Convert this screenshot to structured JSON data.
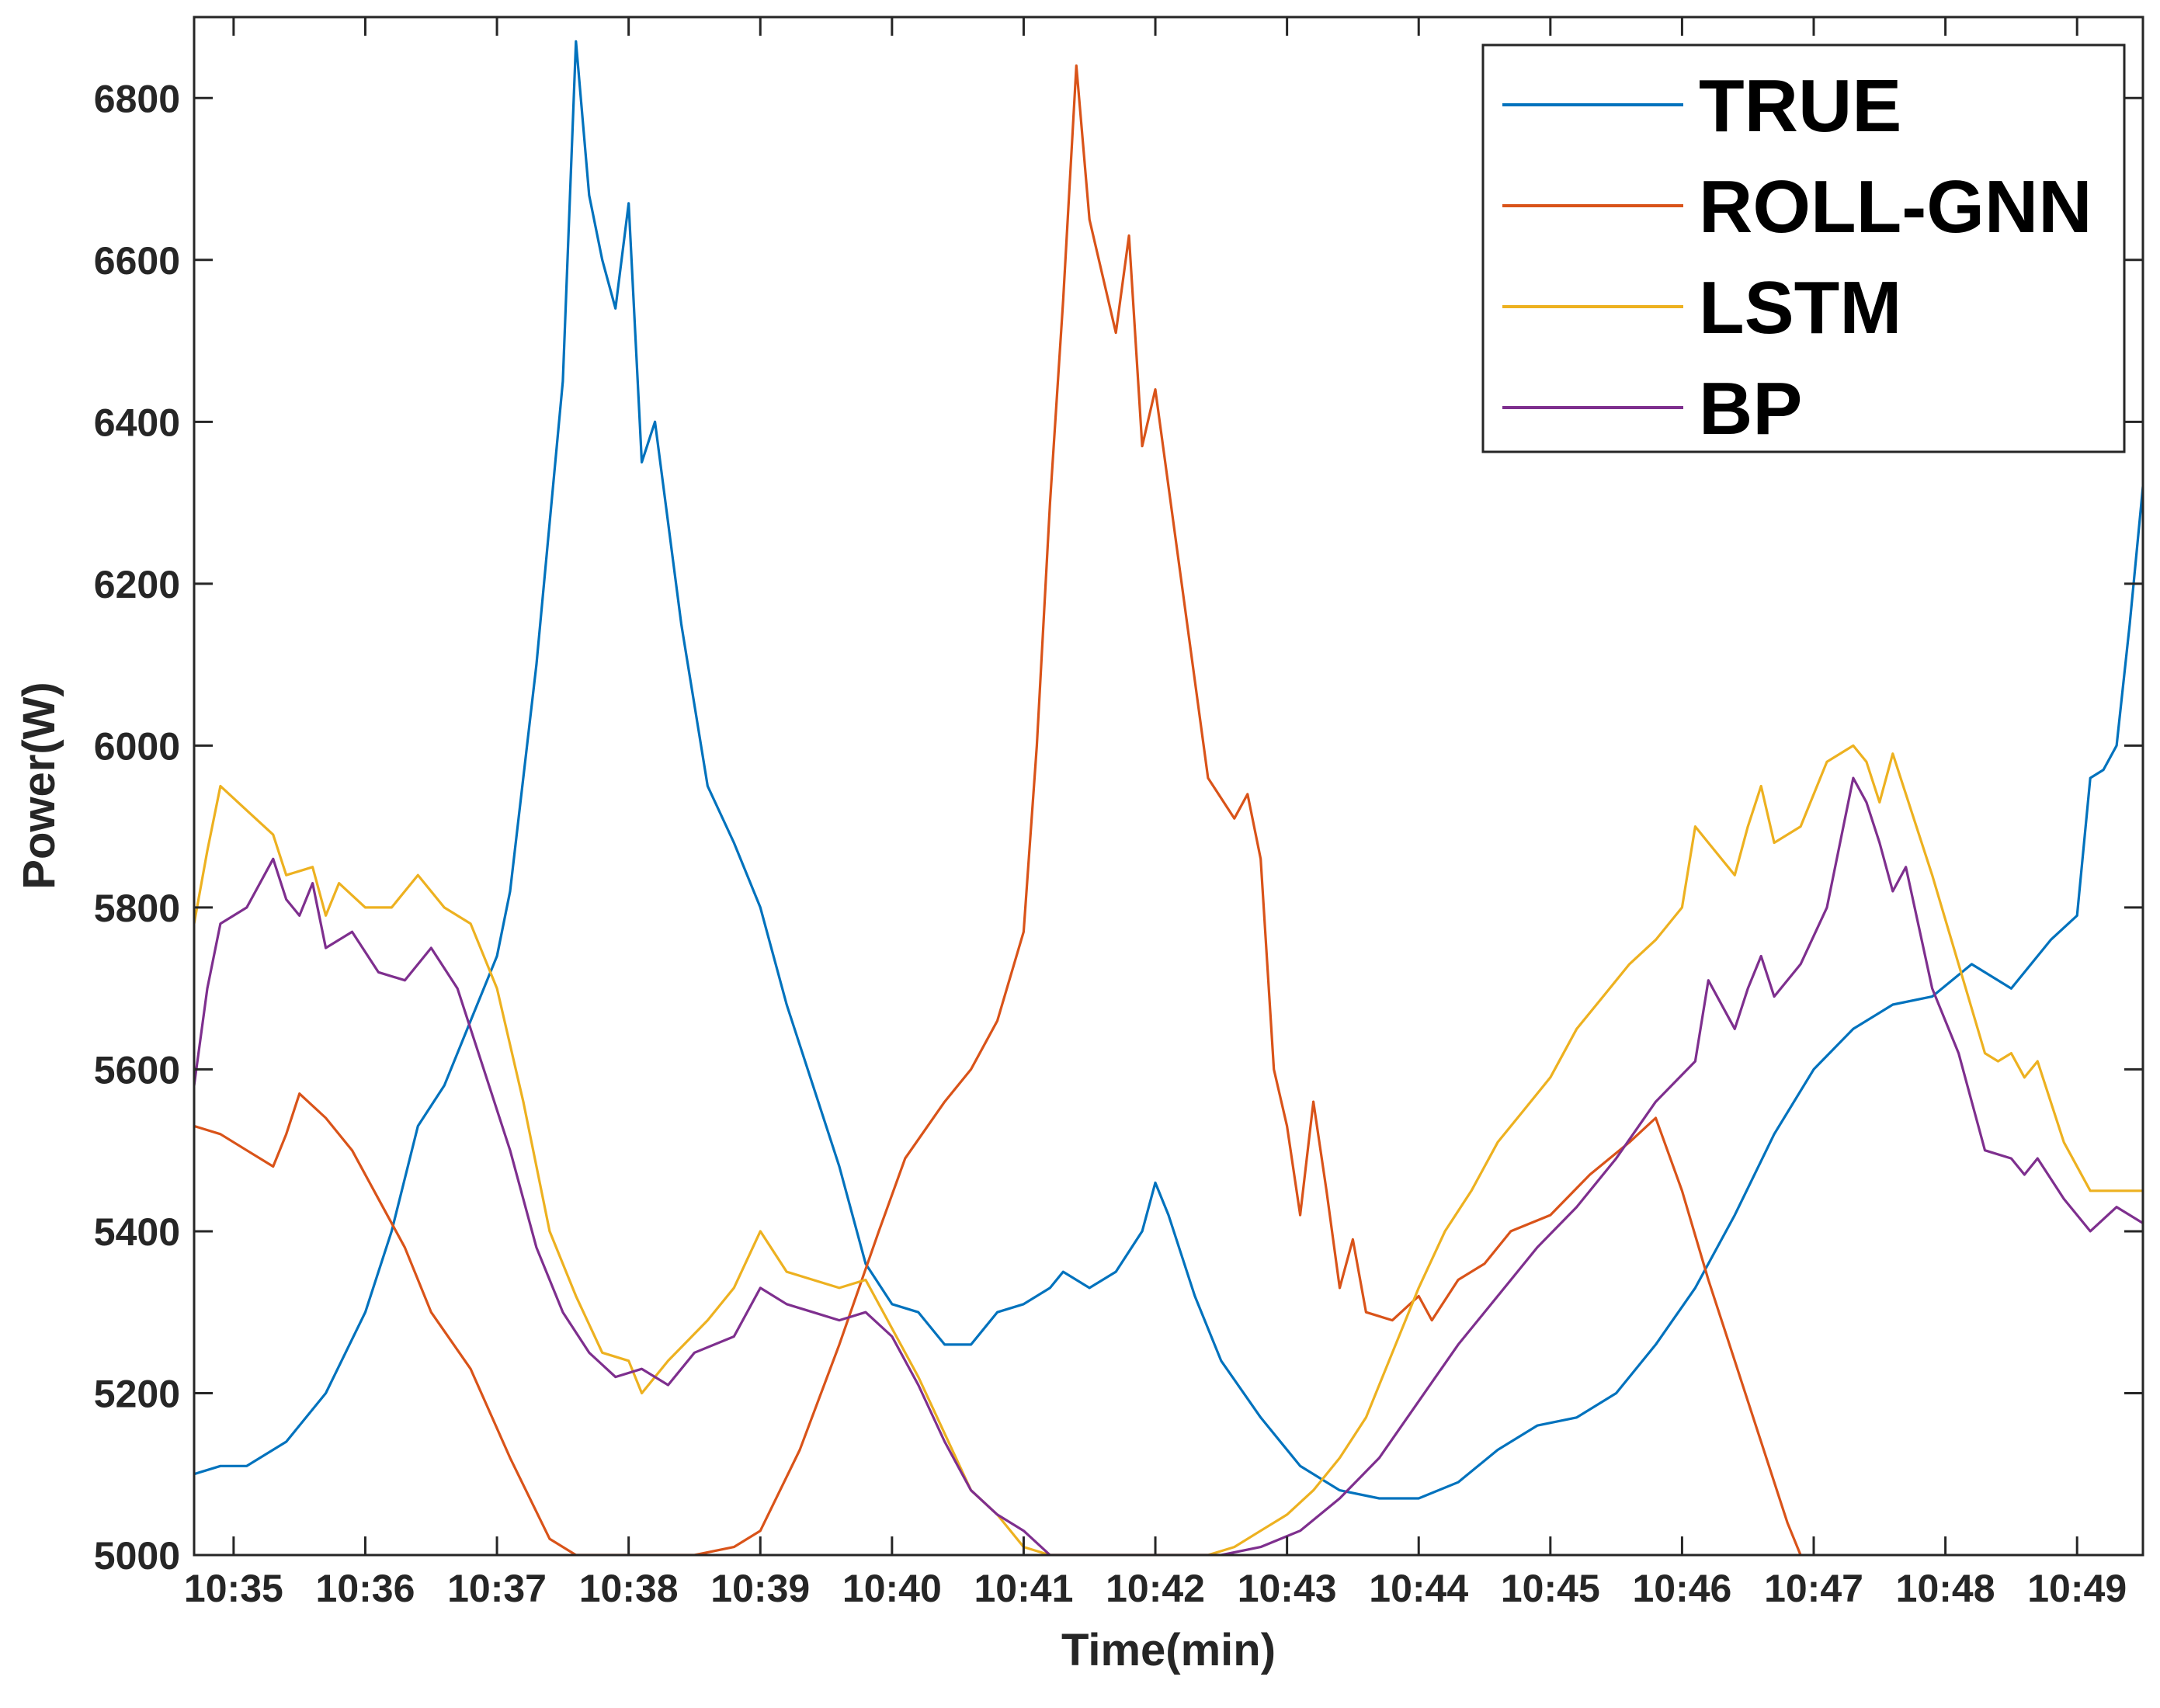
{
  "chart_data": {
    "type": "line",
    "title": "",
    "xlabel": "Time(min)",
    "ylabel": "Power(W)",
    "xlim": [
      "10:34:42",
      "10:49:30"
    ],
    "ylim": [
      5000,
      6900
    ],
    "x_ticks": [
      "10:35",
      "10:36",
      "10:37",
      "10:38",
      "10:39",
      "10:40",
      "10:41",
      "10:42",
      "10:43",
      "10:44",
      "10:45",
      "10:46",
      "10:47",
      "10:48",
      "10:49"
    ],
    "y_ticks": [
      "5000",
      "5200",
      "5400",
      "5600",
      "5800",
      "6000",
      "6200",
      "6400",
      "6600",
      "6800"
    ],
    "grid": false,
    "legend_position": "top-right",
    "series": [
      {
        "name": "TRUE",
        "color": "#0072BD",
        "points": [
          [
            "10:34:42",
            5100
          ],
          [
            "10:34:54",
            5110
          ],
          [
            "10:35:06",
            5110
          ],
          [
            "10:35:24",
            5140
          ],
          [
            "10:35:42",
            5200
          ],
          [
            "10:36:00",
            5300
          ],
          [
            "10:36:12",
            5400
          ],
          [
            "10:36:24",
            5530
          ],
          [
            "10:36:36",
            5580
          ],
          [
            "10:36:48",
            5660
          ],
          [
            "10:37:00",
            5740
          ],
          [
            "10:37:06",
            5820
          ],
          [
            "10:37:18",
            6100
          ],
          [
            "10:37:30",
            6450
          ],
          [
            "10:37:36",
            6870
          ],
          [
            "10:37:42",
            6680
          ],
          [
            "10:37:48",
            6600
          ],
          [
            "10:37:54",
            6540
          ],
          [
            "10:38:00",
            6670
          ],
          [
            "10:38:06",
            6350
          ],
          [
            "10:38:12",
            6400
          ],
          [
            "10:38:24",
            6150
          ],
          [
            "10:38:36",
            5950
          ],
          [
            "10:38:48",
            5880
          ],
          [
            "10:39:00",
            5800
          ],
          [
            "10:39:12",
            5680
          ],
          [
            "10:39:24",
            5580
          ],
          [
            "10:39:36",
            5480
          ],
          [
            "10:39:48",
            5360
          ],
          [
            "10:40:00",
            5310
          ],
          [
            "10:40:12",
            5300
          ],
          [
            "10:40:24",
            5260
          ],
          [
            "10:40:36",
            5260
          ],
          [
            "10:40:48",
            5300
          ],
          [
            "10:41:00",
            5310
          ],
          [
            "10:41:12",
            5330
          ],
          [
            "10:41:18",
            5350
          ],
          [
            "10:41:30",
            5330
          ],
          [
            "10:41:42",
            5350
          ],
          [
            "10:41:54",
            5400
          ],
          [
            "10:42:00",
            5460
          ],
          [
            "10:42:06",
            5420
          ],
          [
            "10:42:18",
            5320
          ],
          [
            "10:42:30",
            5240
          ],
          [
            "10:42:48",
            5170
          ],
          [
            "10:43:06",
            5110
          ],
          [
            "10:43:24",
            5080
          ],
          [
            "10:43:42",
            5070
          ],
          [
            "10:44:00",
            5070
          ],
          [
            "10:44:18",
            5090
          ],
          [
            "10:44:36",
            5130
          ],
          [
            "10:44:54",
            5160
          ],
          [
            "10:45:12",
            5170
          ],
          [
            "10:45:30",
            5200
          ],
          [
            "10:45:48",
            5260
          ],
          [
            "10:46:06",
            5330
          ],
          [
            "10:46:24",
            5420
          ],
          [
            "10:46:42",
            5520
          ],
          [
            "10:47:00",
            5600
          ],
          [
            "10:47:18",
            5650
          ],
          [
            "10:47:36",
            5680
          ],
          [
            "10:47:54",
            5690
          ],
          [
            "10:48:12",
            5730
          ],
          [
            "10:48:30",
            5700
          ],
          [
            "10:48:48",
            5760
          ],
          [
            "10:49:00",
            5790
          ],
          [
            "10:49:06",
            5960
          ],
          [
            "10:49:12",
            5970
          ],
          [
            "10:49:18",
            6000
          ],
          [
            "10:49:24",
            6150
          ],
          [
            "10:49:30",
            6320
          ]
        ]
      },
      {
        "name": "ROLL-GNN",
        "color": "#D95319",
        "points": [
          [
            "10:34:42",
            5530
          ],
          [
            "10:34:54",
            5520
          ],
          [
            "10:35:06",
            5500
          ],
          [
            "10:35:18",
            5480
          ],
          [
            "10:35:24",
            5520
          ],
          [
            "10:35:30",
            5570
          ],
          [
            "10:35:42",
            5540
          ],
          [
            "10:35:54",
            5500
          ],
          [
            "10:36:06",
            5440
          ],
          [
            "10:36:18",
            5380
          ],
          [
            "10:36:30",
            5300
          ],
          [
            "10:36:48",
            5230
          ],
          [
            "10:37:06",
            5120
          ],
          [
            "10:37:24",
            5020
          ],
          [
            "10:37:36",
            5000
          ],
          [
            "10:38:30",
            5000
          ],
          [
            "10:38:48",
            5010
          ],
          [
            "10:39:00",
            5030
          ],
          [
            "10:39:18",
            5130
          ],
          [
            "10:39:36",
            5260
          ],
          [
            "10:39:54",
            5400
          ],
          [
            "10:40:06",
            5490
          ],
          [
            "10:40:24",
            5560
          ],
          [
            "10:40:36",
            5600
          ],
          [
            "10:40:48",
            5660
          ],
          [
            "10:41:00",
            5770
          ],
          [
            "10:41:06",
            6000
          ],
          [
            "10:41:12",
            6300
          ],
          [
            "10:41:18",
            6550
          ],
          [
            "10:41:24",
            6840
          ],
          [
            "10:41:30",
            6650
          ],
          [
            "10:41:36",
            6580
          ],
          [
            "10:41:42",
            6510
          ],
          [
            "10:41:48",
            6630
          ],
          [
            "10:41:54",
            6370
          ],
          [
            "10:42:00",
            6440
          ],
          [
            "10:42:12",
            6200
          ],
          [
            "10:42:24",
            5960
          ],
          [
            "10:42:36",
            5910
          ],
          [
            "10:42:42",
            5940
          ],
          [
            "10:42:48",
            5860
          ],
          [
            "10:42:54",
            5600
          ],
          [
            "10:43:00",
            5530
          ],
          [
            "10:43:06",
            5420
          ],
          [
            "10:43:12",
            5560
          ],
          [
            "10:43:18",
            5450
          ],
          [
            "10:43:24",
            5330
          ],
          [
            "10:43:30",
            5390
          ],
          [
            "10:43:36",
            5300
          ],
          [
            "10:43:48",
            5290
          ],
          [
            "10:44:00",
            5320
          ],
          [
            "10:44:06",
            5290
          ],
          [
            "10:44:18",
            5340
          ],
          [
            "10:44:30",
            5360
          ],
          [
            "10:44:42",
            5400
          ],
          [
            "10:45:00",
            5420
          ],
          [
            "10:45:18",
            5470
          ],
          [
            "10:45:36",
            5510
          ],
          [
            "10:45:48",
            5540
          ],
          [
            "10:46:00",
            5450
          ],
          [
            "10:46:12",
            5340
          ],
          [
            "10:46:24",
            5240
          ],
          [
            "10:46:36",
            5140
          ],
          [
            "10:46:48",
            5040
          ],
          [
            "10:46:54",
            5000
          ]
        ]
      },
      {
        "name": "LSTM",
        "color": "#EDB120",
        "points": [
          [
            "10:34:42",
            5780
          ],
          [
            "10:34:48",
            5870
          ],
          [
            "10:34:54",
            5950
          ],
          [
            "10:35:06",
            5920
          ],
          [
            "10:35:18",
            5890
          ],
          [
            "10:35:24",
            5840
          ],
          [
            "10:35:36",
            5850
          ],
          [
            "10:35:42",
            5790
          ],
          [
            "10:35:48",
            5830
          ],
          [
            "10:36:00",
            5800
          ],
          [
            "10:36:12",
            5800
          ],
          [
            "10:36:24",
            5840
          ],
          [
            "10:36:36",
            5800
          ],
          [
            "10:36:48",
            5780
          ],
          [
            "10:37:00",
            5700
          ],
          [
            "10:37:12",
            5560
          ],
          [
            "10:37:24",
            5400
          ],
          [
            "10:37:36",
            5320
          ],
          [
            "10:37:48",
            5250
          ],
          [
            "10:38:00",
            5240
          ],
          [
            "10:38:06",
            5200
          ],
          [
            "10:38:18",
            5240
          ],
          [
            "10:38:36",
            5290
          ],
          [
            "10:38:48",
            5330
          ],
          [
            "10:39:00",
            5400
          ],
          [
            "10:39:12",
            5350
          ],
          [
            "10:39:24",
            5340
          ],
          [
            "10:39:36",
            5330
          ],
          [
            "10:39:48",
            5340
          ],
          [
            "10:40:00",
            5280
          ],
          [
            "10:40:12",
            5220
          ],
          [
            "10:40:24",
            5150
          ],
          [
            "10:40:36",
            5080
          ],
          [
            "10:40:48",
            5050
          ],
          [
            "10:41:00",
            5010
          ],
          [
            "10:41:12",
            5000
          ],
          [
            "10:42:24",
            5000
          ],
          [
            "10:42:36",
            5010
          ],
          [
            "10:42:48",
            5030
          ],
          [
            "10:43:00",
            5050
          ],
          [
            "10:43:12",
            5080
          ],
          [
            "10:43:24",
            5120
          ],
          [
            "10:43:36",
            5170
          ],
          [
            "10:43:48",
            5250
          ],
          [
            "10:44:00",
            5330
          ],
          [
            "10:44:12",
            5400
          ],
          [
            "10:44:24",
            5450
          ],
          [
            "10:44:36",
            5510
          ],
          [
            "10:44:48",
            5550
          ],
          [
            "10:45:00",
            5590
          ],
          [
            "10:45:12",
            5650
          ],
          [
            "10:45:24",
            5690
          ],
          [
            "10:45:36",
            5730
          ],
          [
            "10:45:48",
            5760
          ],
          [
            "10:46:00",
            5800
          ],
          [
            "10:46:06",
            5900
          ],
          [
            "10:46:12",
            5880
          ],
          [
            "10:46:24",
            5840
          ],
          [
            "10:46:30",
            5900
          ],
          [
            "10:46:36",
            5950
          ],
          [
            "10:46:42",
            5880
          ],
          [
            "10:46:54",
            5900
          ],
          [
            "10:47:06",
            5980
          ],
          [
            "10:47:18",
            6000
          ],
          [
            "10:47:24",
            5980
          ],
          [
            "10:47:30",
            5930
          ],
          [
            "10:47:36",
            5990
          ],
          [
            "10:47:42",
            5940
          ],
          [
            "10:47:54",
            5840
          ],
          [
            "10:48:06",
            5730
          ],
          [
            "10:48:18",
            5620
          ],
          [
            "10:48:24",
            5610
          ],
          [
            "10:48:30",
            5620
          ],
          [
            "10:48:36",
            5590
          ],
          [
            "10:48:42",
            5610
          ],
          [
            "10:48:54",
            5510
          ],
          [
            "10:49:06",
            5450
          ],
          [
            "10:49:18",
            5450
          ],
          [
            "10:49:30",
            5450
          ]
        ]
      },
      {
        "name": "BP",
        "color": "#7E2F8E",
        "points": [
          [
            "10:34:42",
            5580
          ],
          [
            "10:34:48",
            5700
          ],
          [
            "10:34:54",
            5780
          ],
          [
            "10:35:06",
            5800
          ],
          [
            "10:35:18",
            5860
          ],
          [
            "10:35:24",
            5810
          ],
          [
            "10:35:30",
            5790
          ],
          [
            "10:35:36",
            5830
          ],
          [
            "10:35:42",
            5750
          ],
          [
            "10:35:54",
            5770
          ],
          [
            "10:36:06",
            5720
          ],
          [
            "10:36:18",
            5710
          ],
          [
            "10:36:30",
            5750
          ],
          [
            "10:36:42",
            5700
          ],
          [
            "10:36:54",
            5600
          ],
          [
            "10:37:06",
            5500
          ],
          [
            "10:37:18",
            5380
          ],
          [
            "10:37:30",
            5300
          ],
          [
            "10:37:42",
            5250
          ],
          [
            "10:37:54",
            5220
          ],
          [
            "10:38:06",
            5230
          ],
          [
            "10:38:18",
            5210
          ],
          [
            "10:38:30",
            5250
          ],
          [
            "10:38:48",
            5270
          ],
          [
            "10:39:00",
            5330
          ],
          [
            "10:39:12",
            5310
          ],
          [
            "10:39:24",
            5300
          ],
          [
            "10:39:36",
            5290
          ],
          [
            "10:39:48",
            5300
          ],
          [
            "10:40:00",
            5270
          ],
          [
            "10:40:12",
            5210
          ],
          [
            "10:40:24",
            5140
          ],
          [
            "10:40:36",
            5080
          ],
          [
            "10:40:48",
            5050
          ],
          [
            "10:41:00",
            5030
          ],
          [
            "10:41:12",
            5000
          ],
          [
            "10:42:30",
            5000
          ],
          [
            "10:42:48",
            5010
          ],
          [
            "10:43:06",
            5030
          ],
          [
            "10:43:24",
            5070
          ],
          [
            "10:43:42",
            5120
          ],
          [
            "10:44:00",
            5190
          ],
          [
            "10:44:18",
            5260
          ],
          [
            "10:44:36",
            5320
          ],
          [
            "10:44:54",
            5380
          ],
          [
            "10:45:12",
            5430
          ],
          [
            "10:45:30",
            5490
          ],
          [
            "10:45:48",
            5560
          ],
          [
            "10:46:06",
            5610
          ],
          [
            "10:46:12",
            5710
          ],
          [
            "10:46:24",
            5650
          ],
          [
            "10:46:30",
            5700
          ],
          [
            "10:46:36",
            5740
          ],
          [
            "10:46:42",
            5690
          ],
          [
            "10:46:54",
            5730
          ],
          [
            "10:47:06",
            5800
          ],
          [
            "10:47:18",
            5960
          ],
          [
            "10:47:24",
            5930
          ],
          [
            "10:47:30",
            5880
          ],
          [
            "10:47:36",
            5820
          ],
          [
            "10:47:42",
            5850
          ],
          [
            "10:47:54",
            5700
          ],
          [
            "10:48:06",
            5620
          ],
          [
            "10:48:18",
            5500
          ],
          [
            "10:48:30",
            5490
          ],
          [
            "10:48:36",
            5470
          ],
          [
            "10:48:42",
            5490
          ],
          [
            "10:48:54",
            5440
          ],
          [
            "10:49:06",
            5400
          ],
          [
            "10:49:18",
            5430
          ],
          [
            "10:49:30",
            5410
          ]
        ]
      }
    ]
  }
}
